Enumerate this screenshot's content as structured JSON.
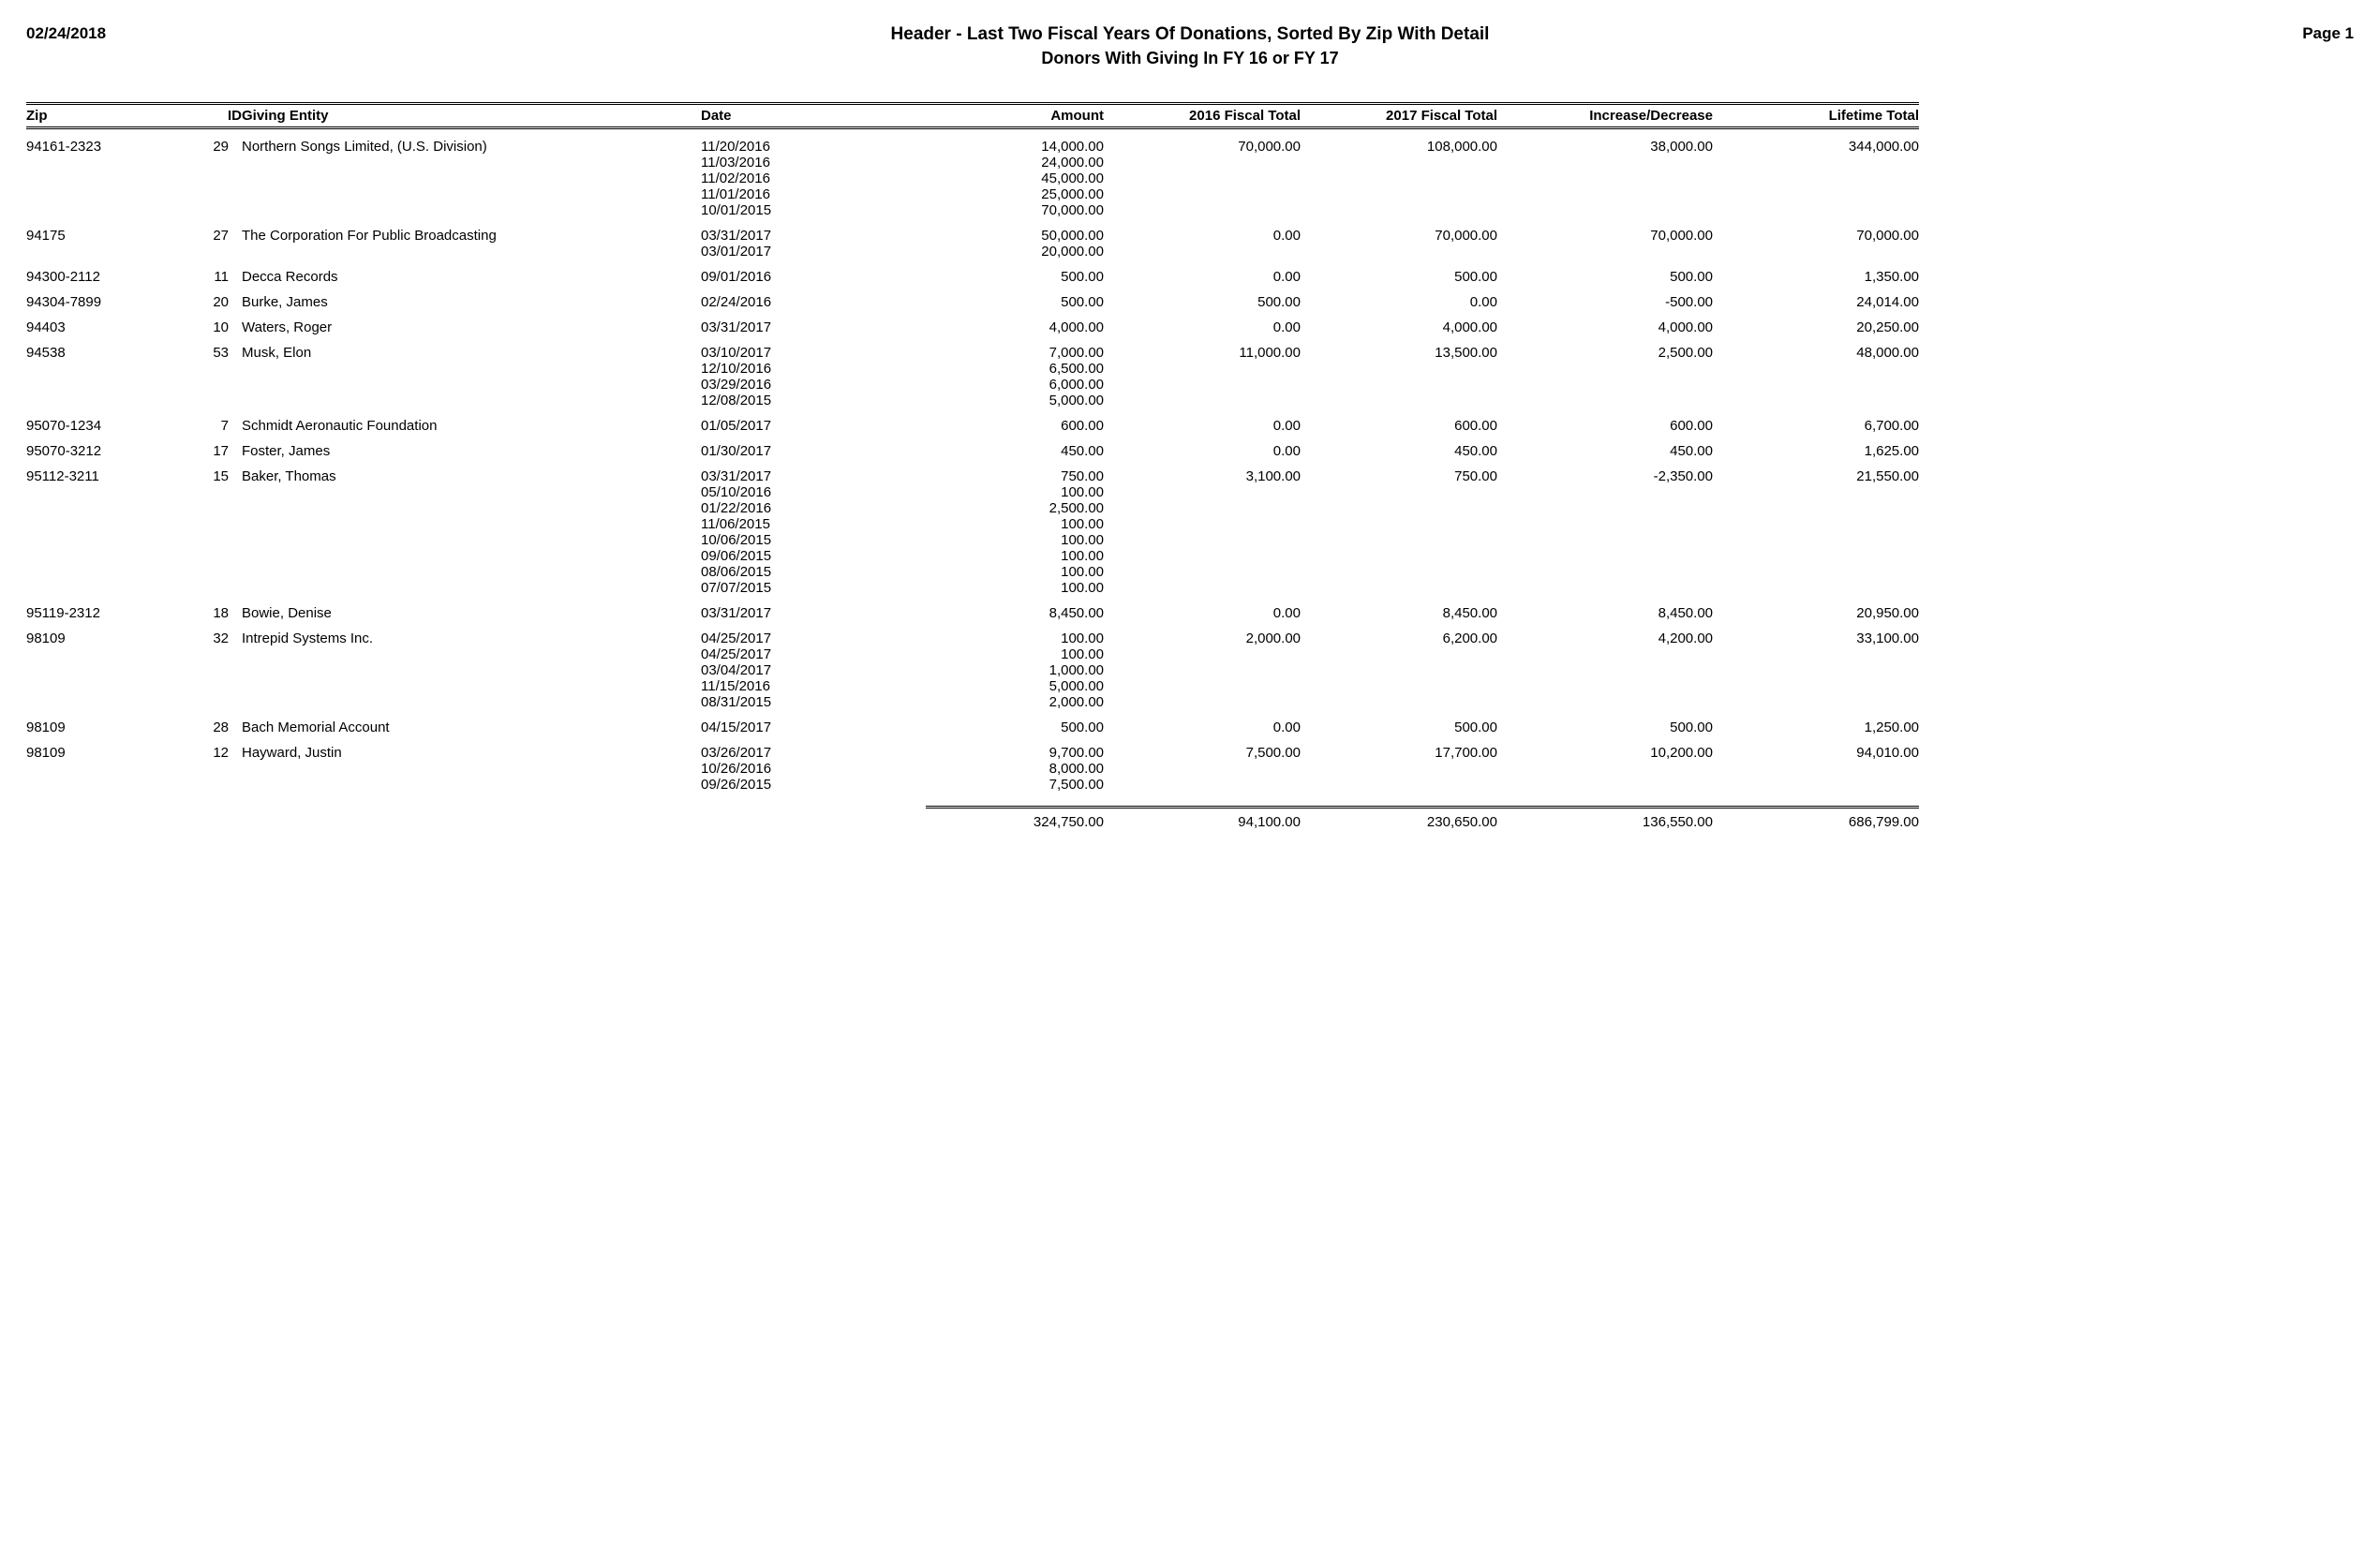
{
  "header": {
    "date": "02/24/2018",
    "title": "Header - Last Two Fiscal Years Of Donations, Sorted By Zip With Detail",
    "subtitle": "Donors With Giving In FY 16 or FY 17",
    "page": "Page 1"
  },
  "columns": {
    "zip": "Zip",
    "id": "ID",
    "entity": "Giving Entity",
    "date": "Date",
    "amount": "Amount",
    "fy16": "2016 Fiscal Total",
    "fy17": "2017 Fiscal Total",
    "inc": "Increase/Decrease",
    "life": "Lifetime Total"
  },
  "rows": [
    {
      "zip": "94161-2323",
      "id": "29",
      "entity": "Northern Songs Limited, (U.S. Division)",
      "fy16": "70,000.00",
      "fy17": "108,000.00",
      "inc": "38,000.00",
      "life": "344,000.00",
      "details": [
        {
          "date": "11/20/2016",
          "amount": "14,000.00"
        },
        {
          "date": "11/03/2016",
          "amount": "24,000.00"
        },
        {
          "date": "11/02/2016",
          "amount": "45,000.00"
        },
        {
          "date": "11/01/2016",
          "amount": "25,000.00"
        },
        {
          "date": "10/01/2015",
          "amount": "70,000.00"
        }
      ]
    },
    {
      "zip": "94175",
      "id": "27",
      "entity": "The Corporation For Public Broadcasting",
      "fy16": "0.00",
      "fy17": "70,000.00",
      "inc": "70,000.00",
      "life": "70,000.00",
      "details": [
        {
          "date": "03/31/2017",
          "amount": "50,000.00"
        },
        {
          "date": "03/01/2017",
          "amount": "20,000.00"
        }
      ]
    },
    {
      "zip": "94300-2112",
      "id": "11",
      "entity": "Decca Records",
      "fy16": "0.00",
      "fy17": "500.00",
      "inc": "500.00",
      "life": "1,350.00",
      "details": [
        {
          "date": "09/01/2016",
          "amount": "500.00"
        }
      ]
    },
    {
      "zip": "94304-7899",
      "id": "20",
      "entity": "Burke, James",
      "fy16": "500.00",
      "fy17": "0.00",
      "inc": "-500.00",
      "life": "24,014.00",
      "details": [
        {
          "date": "02/24/2016",
          "amount": "500.00"
        }
      ]
    },
    {
      "zip": "94403",
      "id": "10",
      "entity": "Waters, Roger",
      "fy16": "0.00",
      "fy17": "4,000.00",
      "inc": "4,000.00",
      "life": "20,250.00",
      "details": [
        {
          "date": "03/31/2017",
          "amount": "4,000.00"
        }
      ]
    },
    {
      "zip": "94538",
      "id": "53",
      "entity": "Musk, Elon",
      "fy16": "11,000.00",
      "fy17": "13,500.00",
      "inc": "2,500.00",
      "life": "48,000.00",
      "details": [
        {
          "date": "03/10/2017",
          "amount": "7,000.00"
        },
        {
          "date": "12/10/2016",
          "amount": "6,500.00"
        },
        {
          "date": "03/29/2016",
          "amount": "6,000.00"
        },
        {
          "date": "12/08/2015",
          "amount": "5,000.00"
        }
      ]
    },
    {
      "zip": "95070-1234",
      "id": "7",
      "entity": "Schmidt Aeronautic Foundation",
      "fy16": "0.00",
      "fy17": "600.00",
      "inc": "600.00",
      "life": "6,700.00",
      "details": [
        {
          "date": "01/05/2017",
          "amount": "600.00"
        }
      ]
    },
    {
      "zip": "95070-3212",
      "id": "17",
      "entity": "Foster, James",
      "fy16": "0.00",
      "fy17": "450.00",
      "inc": "450.00",
      "life": "1,625.00",
      "details": [
        {
          "date": "01/30/2017",
          "amount": "450.00"
        }
      ]
    },
    {
      "zip": "95112-3211",
      "id": "15",
      "entity": "Baker, Thomas",
      "fy16": "3,100.00",
      "fy17": "750.00",
      "inc": "-2,350.00",
      "life": "21,550.00",
      "details": [
        {
          "date": "03/31/2017",
          "amount": "750.00"
        },
        {
          "date": "05/10/2016",
          "amount": "100.00"
        },
        {
          "date": "01/22/2016",
          "amount": "2,500.00"
        },
        {
          "date": "11/06/2015",
          "amount": "100.00"
        },
        {
          "date": "10/06/2015",
          "amount": "100.00"
        },
        {
          "date": "09/06/2015",
          "amount": "100.00"
        },
        {
          "date": "08/06/2015",
          "amount": "100.00"
        },
        {
          "date": "07/07/2015",
          "amount": "100.00"
        }
      ]
    },
    {
      "zip": "95119-2312",
      "id": "18",
      "entity": "Bowie, Denise",
      "fy16": "0.00",
      "fy17": "8,450.00",
      "inc": "8,450.00",
      "life": "20,950.00",
      "details": [
        {
          "date": "03/31/2017",
          "amount": "8,450.00"
        }
      ]
    },
    {
      "zip": "98109",
      "id": "32",
      "entity": "Intrepid Systems Inc.",
      "fy16": "2,000.00",
      "fy17": "6,200.00",
      "inc": "4,200.00",
      "life": "33,100.00",
      "details": [
        {
          "date": "04/25/2017",
          "amount": "100.00"
        },
        {
          "date": "04/25/2017",
          "amount": "100.00"
        },
        {
          "date": "03/04/2017",
          "amount": "1,000.00"
        },
        {
          "date": "11/15/2016",
          "amount": "5,000.00"
        },
        {
          "date": "08/31/2015",
          "amount": "2,000.00"
        }
      ]
    },
    {
      "zip": "98109",
      "id": "28",
      "entity": "Bach Memorial Account",
      "fy16": "0.00",
      "fy17": "500.00",
      "inc": "500.00",
      "life": "1,250.00",
      "details": [
        {
          "date": "04/15/2017",
          "amount": "500.00"
        }
      ]
    },
    {
      "zip": "98109",
      "id": "12",
      "entity": "Hayward, Justin",
      "fy16": "7,500.00",
      "fy17": "17,700.00",
      "inc": "10,200.00",
      "life": "94,010.00",
      "details": [
        {
          "date": "03/26/2017",
          "amount": "9,700.00"
        },
        {
          "date": "10/26/2016",
          "amount": "8,000.00"
        },
        {
          "date": "09/26/2015",
          "amount": "7,500.00"
        }
      ]
    }
  ],
  "totals": {
    "amount": "324,750.00",
    "fy16": "94,100.00",
    "fy17": "230,650.00",
    "inc": "136,550.00",
    "life": "686,799.00"
  }
}
